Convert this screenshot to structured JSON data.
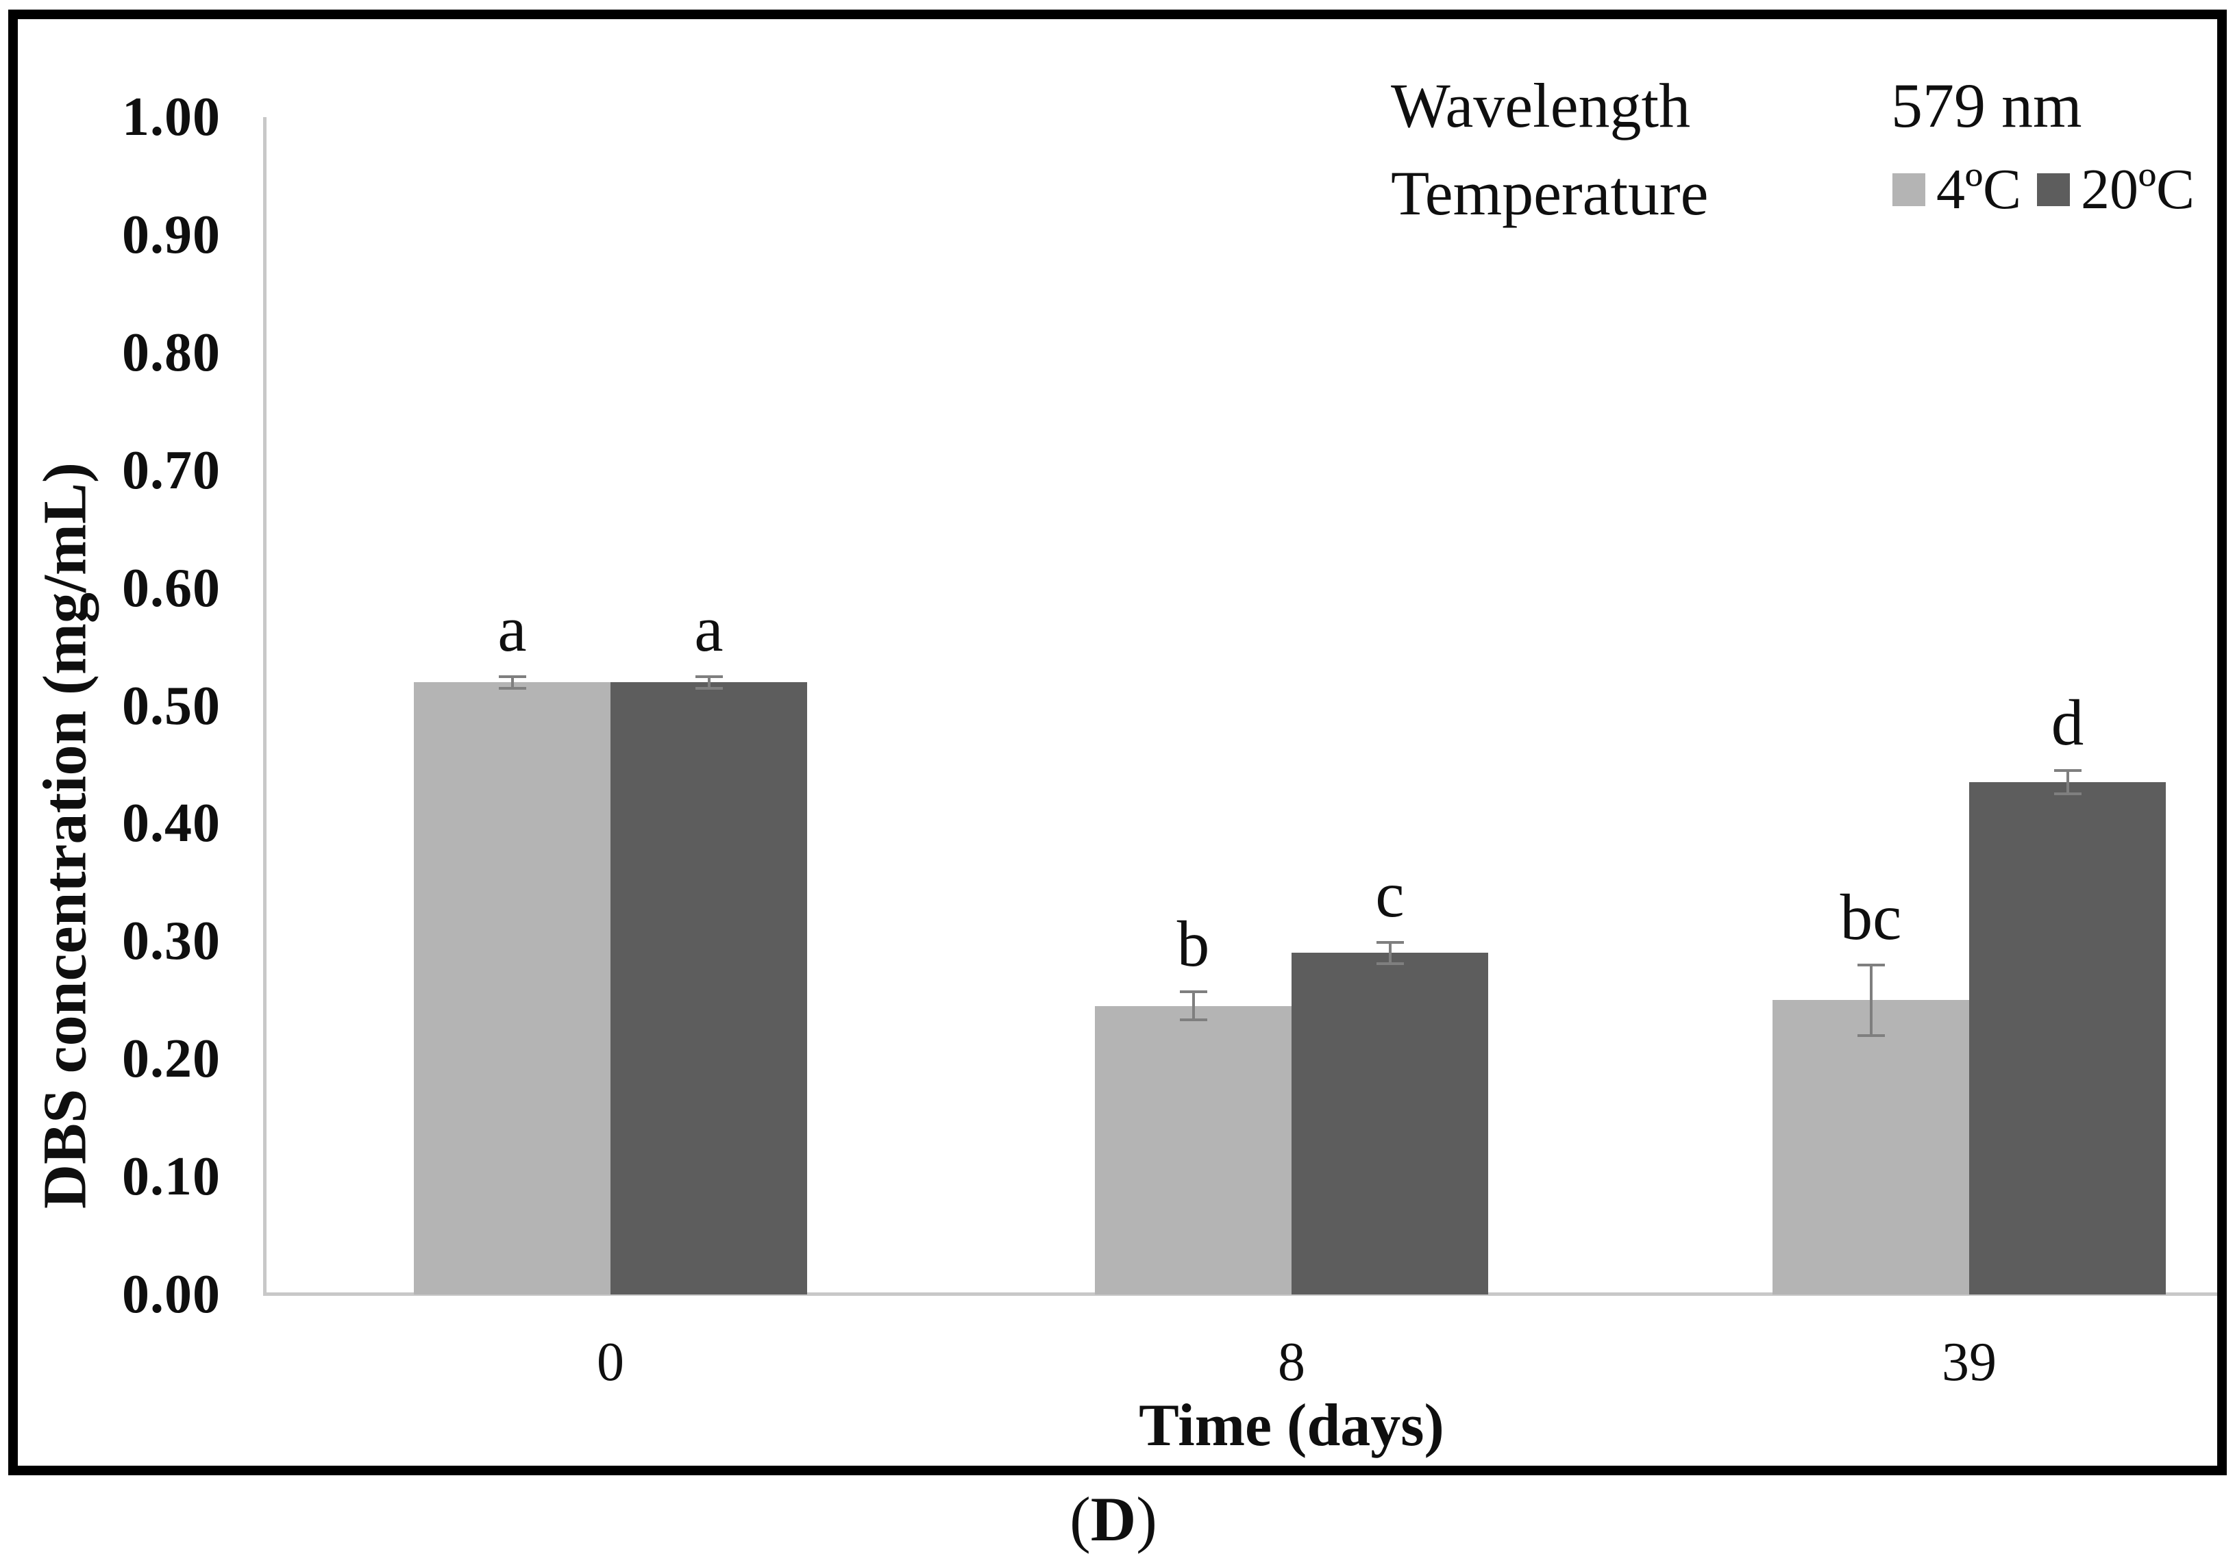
{
  "caption": {
    "open": "(",
    "letter": "D",
    "close": ")"
  },
  "colors": {
    "frame": "#000000",
    "axis_line": "#c8c8c8",
    "error_bar": "#7f7f7f",
    "text": "#0f0f0f",
    "series_4C": "#b4b4b4",
    "series_20C": "#5d5d5d"
  },
  "chart_data": {
    "type": "bar",
    "title": "",
    "xlabel": "Time (days)",
    "ylabel": "DBS concentration (mg/mL)",
    "categories": [
      "0",
      "8",
      "39"
    ],
    "series": [
      {
        "name": "4ºC",
        "color": "#b4b4b4",
        "values": [
          0.52,
          0.245,
          0.25
        ],
        "errors": [
          0.005,
          0.012,
          0.03
        ],
        "sig_labels": [
          "a",
          "b",
          "bc"
        ]
      },
      {
        "name": "20ºC",
        "color": "#5d5d5d",
        "values": [
          0.52,
          0.29,
          0.435
        ],
        "errors": [
          0.005,
          0.009,
          0.01
        ],
        "sig_labels": [
          "a",
          "c",
          "d"
        ]
      }
    ],
    "ylim": [
      0.0,
      1.0
    ],
    "ytick_step": 0.1,
    "yticks": [
      {
        "value": 0.0,
        "label": "0.00"
      },
      {
        "value": 0.1,
        "label": "0.10"
      },
      {
        "value": 0.2,
        "label": "0.20"
      },
      {
        "value": 0.3,
        "label": "0.30"
      },
      {
        "value": 0.4,
        "label": "0.40"
      },
      {
        "value": 0.5,
        "label": "0.50"
      },
      {
        "value": 0.6,
        "label": "0.60"
      },
      {
        "value": 0.7,
        "label": "0.70"
      },
      {
        "value": 0.8,
        "label": "0.80"
      },
      {
        "value": 0.9,
        "label": "0.90"
      },
      {
        "value": 1.0,
        "label": "1.00"
      }
    ],
    "grid": false,
    "error_bars": true,
    "legend": {
      "position": "top-right",
      "rows": [
        {
          "label": "Wavelength",
          "value": "579 nm"
        },
        {
          "label": "Temperature",
          "value": ""
        }
      ],
      "entries": [
        {
          "name": "4ºC",
          "color": "#b4b4b4"
        },
        {
          "name": "20ºC",
          "color": "#5d5d5d"
        }
      ]
    }
  }
}
